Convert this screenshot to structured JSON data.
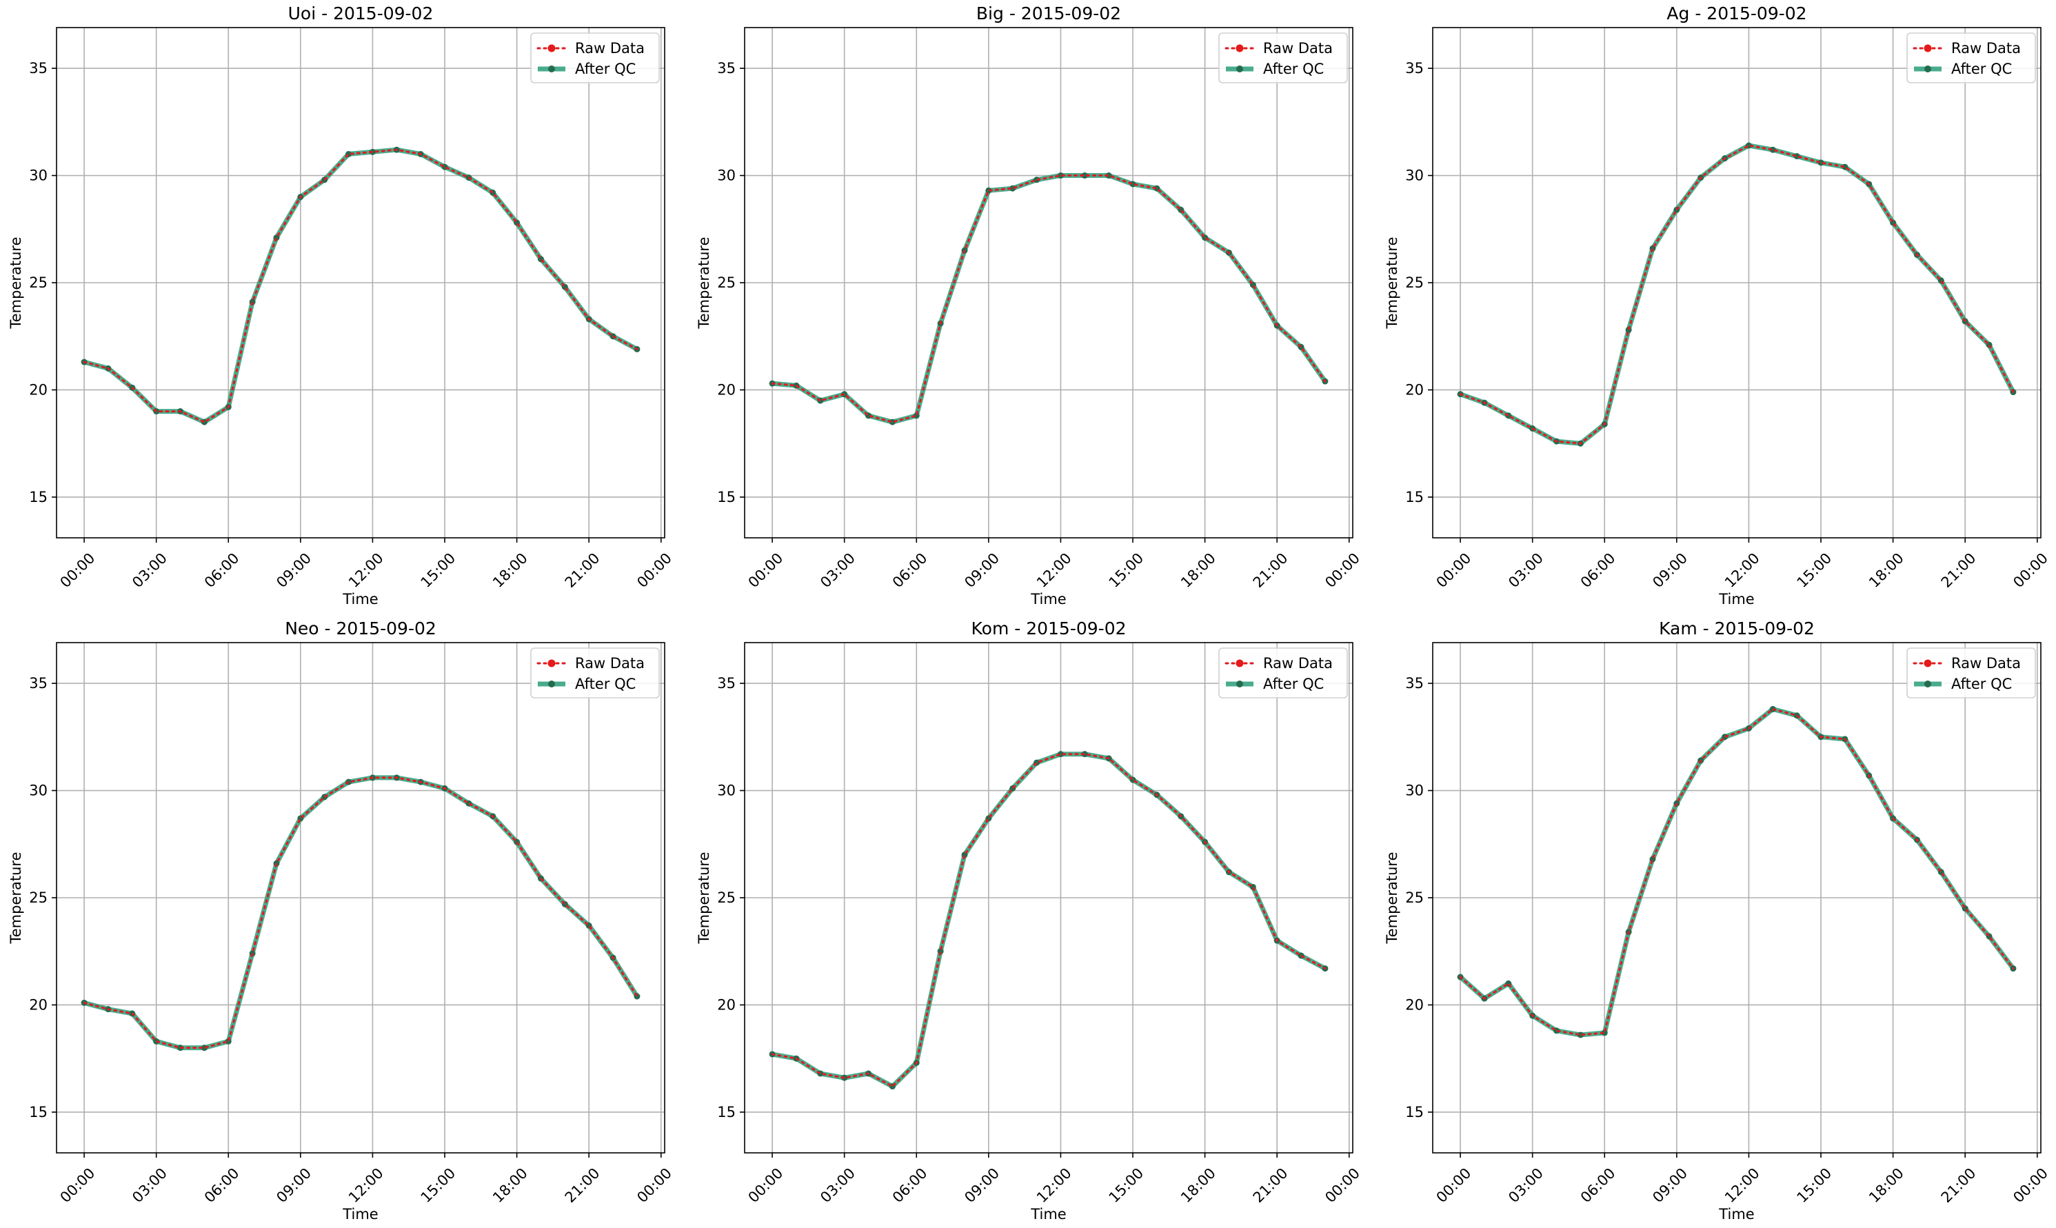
{
  "chart_data": [
    {
      "type": "line",
      "title": "Uoi - 2015-09-02",
      "xlabel": "Time",
      "ylabel": "Temperature",
      "ylim": [
        13.1,
        36.9
      ],
      "yticks": [
        15,
        20,
        25,
        30,
        35
      ],
      "xticks": [
        "00:00",
        "03:00",
        "06:00",
        "09:00",
        "12:00",
        "15:00",
        "18:00",
        "21:00",
        "00:00"
      ],
      "x_hours": [
        0,
        1,
        2,
        3,
        4,
        5,
        6,
        7,
        8,
        9,
        10,
        11,
        12,
        13,
        14,
        15,
        16,
        17,
        18,
        19,
        20,
        21,
        22,
        23
      ],
      "grid": true,
      "legend": "top-right",
      "series": [
        {
          "name": "Raw Data",
          "color": "#e41a1c",
          "values": [
            21.3,
            21.0,
            20.1,
            19.0,
            19.0,
            18.5,
            19.2,
            24.1,
            27.1,
            29.0,
            29.8,
            31.0,
            31.1,
            31.2,
            31.0,
            30.4,
            29.9,
            29.2,
            27.8,
            26.1,
            24.8,
            23.3,
            22.5,
            21.9
          ]
        },
        {
          "name": "After QC",
          "color": "#2a9d7a",
          "values": [
            21.3,
            21.0,
            20.1,
            19.0,
            19.0,
            18.5,
            19.2,
            24.1,
            27.1,
            29.0,
            29.8,
            31.0,
            31.1,
            31.2,
            31.0,
            30.4,
            29.9,
            29.2,
            27.8,
            26.1,
            24.8,
            23.3,
            22.5,
            21.9
          ]
        }
      ]
    },
    {
      "type": "line",
      "title": "Big - 2015-09-02",
      "xlabel": "Time",
      "ylabel": "Temperature",
      "ylim": [
        13.1,
        36.9
      ],
      "yticks": [
        15,
        20,
        25,
        30,
        35
      ],
      "xticks": [
        "00:00",
        "03:00",
        "06:00",
        "09:00",
        "12:00",
        "15:00",
        "18:00",
        "21:00",
        "00:00"
      ],
      "x_hours": [
        0,
        1,
        2,
        3,
        4,
        5,
        6,
        7,
        8,
        9,
        10,
        11,
        12,
        13,
        14,
        15,
        16,
        17,
        18,
        19,
        20,
        21,
        22,
        23
      ],
      "grid": true,
      "legend": "top-right",
      "series": [
        {
          "name": "Raw Data",
          "color": "#e41a1c",
          "values": [
            20.3,
            20.2,
            19.5,
            19.8,
            18.8,
            18.5,
            18.8,
            23.1,
            26.5,
            29.3,
            29.4,
            29.8,
            30.0,
            30.0,
            30.0,
            29.6,
            29.4,
            28.4,
            27.1,
            26.4,
            24.9,
            23.0,
            22.0,
            20.4
          ]
        },
        {
          "name": "After QC",
          "color": "#2a9d7a",
          "values": [
            20.3,
            20.2,
            19.5,
            19.8,
            18.8,
            18.5,
            18.8,
            23.1,
            26.5,
            29.3,
            29.4,
            29.8,
            30.0,
            30.0,
            30.0,
            29.6,
            29.4,
            28.4,
            27.1,
            26.4,
            24.9,
            23.0,
            22.0,
            20.4
          ]
        }
      ]
    },
    {
      "type": "line",
      "title": "Ag - 2015-09-02",
      "xlabel": "Time",
      "ylabel": "Temperature",
      "ylim": [
        13.1,
        36.9
      ],
      "yticks": [
        15,
        20,
        25,
        30,
        35
      ],
      "xticks": [
        "00:00",
        "03:00",
        "06:00",
        "09:00",
        "12:00",
        "15:00",
        "18:00",
        "21:00",
        "00:00"
      ],
      "x_hours": [
        0,
        1,
        2,
        3,
        4,
        5,
        6,
        7,
        8,
        9,
        10,
        11,
        12,
        13,
        14,
        15,
        16,
        17,
        18,
        19,
        20,
        21,
        22,
        23
      ],
      "grid": true,
      "legend": "top-right",
      "series": [
        {
          "name": "Raw Data",
          "color": "#e41a1c",
          "values": [
            19.8,
            19.4,
            18.8,
            18.2,
            17.6,
            17.5,
            18.4,
            22.8,
            26.6,
            28.4,
            29.9,
            30.8,
            31.4,
            31.2,
            30.9,
            30.6,
            30.4,
            29.6,
            27.8,
            26.3,
            25.1,
            23.2,
            22.1,
            19.9
          ]
        },
        {
          "name": "After QC",
          "color": "#2a9d7a",
          "values": [
            19.8,
            19.4,
            18.8,
            18.2,
            17.6,
            17.5,
            18.4,
            22.8,
            26.6,
            28.4,
            29.9,
            30.8,
            31.4,
            31.2,
            30.9,
            30.6,
            30.4,
            29.6,
            27.8,
            26.3,
            25.1,
            23.2,
            22.1,
            19.9
          ]
        }
      ]
    },
    {
      "type": "line",
      "title": "Neo - 2015-09-02",
      "xlabel": "Time",
      "ylabel": "Temperature",
      "ylim": [
        13.1,
        36.9
      ],
      "yticks": [
        15,
        20,
        25,
        30,
        35
      ],
      "xticks": [
        "00:00",
        "03:00",
        "06:00",
        "09:00",
        "12:00",
        "15:00",
        "18:00",
        "21:00",
        "00:00"
      ],
      "x_hours": [
        0,
        1,
        2,
        3,
        4,
        5,
        6,
        7,
        8,
        9,
        10,
        11,
        12,
        13,
        14,
        15,
        16,
        17,
        18,
        19,
        20,
        21,
        22,
        23
      ],
      "grid": true,
      "legend": "top-right",
      "series": [
        {
          "name": "Raw Data",
          "color": "#e41a1c",
          "values": [
            20.1,
            19.8,
            19.6,
            18.3,
            18.0,
            18.0,
            18.3,
            22.4,
            26.6,
            28.7,
            29.7,
            30.4,
            30.6,
            30.6,
            30.4,
            30.1,
            29.4,
            28.8,
            27.6,
            25.9,
            24.7,
            23.7,
            22.2,
            20.4
          ]
        },
        {
          "name": "After QC",
          "color": "#2a9d7a",
          "values": [
            20.1,
            19.8,
            19.6,
            18.3,
            18.0,
            18.0,
            18.3,
            22.4,
            26.6,
            28.7,
            29.7,
            30.4,
            30.6,
            30.6,
            30.4,
            30.1,
            29.4,
            28.8,
            27.6,
            25.9,
            24.7,
            23.7,
            22.2,
            20.4
          ]
        }
      ]
    },
    {
      "type": "line",
      "title": "Kom - 2015-09-02",
      "xlabel": "Time",
      "ylabel": "Temperature",
      "ylim": [
        13.1,
        36.9
      ],
      "yticks": [
        15,
        20,
        25,
        30,
        35
      ],
      "xticks": [
        "00:00",
        "03:00",
        "06:00",
        "09:00",
        "12:00",
        "15:00",
        "18:00",
        "21:00",
        "00:00"
      ],
      "x_hours": [
        0,
        1,
        2,
        3,
        4,
        5,
        6,
        7,
        8,
        9,
        10,
        11,
        12,
        13,
        14,
        15,
        16,
        17,
        18,
        19,
        20,
        21,
        22,
        23
      ],
      "grid": true,
      "legend": "top-right",
      "series": [
        {
          "name": "Raw Data",
          "color": "#e41a1c",
          "values": [
            17.7,
            17.5,
            16.8,
            16.6,
            16.8,
            16.2,
            17.3,
            22.5,
            27.0,
            28.7,
            30.1,
            31.3,
            31.7,
            31.7,
            31.5,
            30.5,
            29.8,
            28.8,
            27.6,
            26.2,
            25.5,
            23.0,
            22.3,
            21.7
          ]
        },
        {
          "name": "After QC",
          "color": "#2a9d7a",
          "values": [
            17.7,
            17.5,
            16.8,
            16.6,
            16.8,
            16.2,
            17.3,
            22.5,
            27.0,
            28.7,
            30.1,
            31.3,
            31.7,
            31.7,
            31.5,
            30.5,
            29.8,
            28.8,
            27.6,
            26.2,
            25.5,
            23.0,
            22.3,
            21.7
          ]
        }
      ]
    },
    {
      "type": "line",
      "title": "Kam - 2015-09-02",
      "xlabel": "Time",
      "ylabel": "Temperature",
      "ylim": [
        13.1,
        36.9
      ],
      "yticks": [
        15,
        20,
        25,
        30,
        35
      ],
      "xticks": [
        "00:00",
        "03:00",
        "06:00",
        "09:00",
        "12:00",
        "15:00",
        "18:00",
        "21:00",
        "00:00"
      ],
      "x_hours": [
        0,
        1,
        2,
        3,
        4,
        5,
        6,
        7,
        8,
        9,
        10,
        11,
        12,
        13,
        14,
        15,
        16,
        17,
        18,
        19,
        20,
        21,
        22,
        23
      ],
      "grid": true,
      "legend": "top-right",
      "series": [
        {
          "name": "Raw Data",
          "color": "#e41a1c",
          "values": [
            21.3,
            20.3,
            21.0,
            19.5,
            18.8,
            18.6,
            18.7,
            23.4,
            26.8,
            29.4,
            31.4,
            32.5,
            32.9,
            33.8,
            33.5,
            32.5,
            32.4,
            30.7,
            28.7,
            27.7,
            26.2,
            24.5,
            23.2,
            21.7
          ]
        },
        {
          "name": "After QC",
          "color": "#2a9d7a",
          "values": [
            21.3,
            20.3,
            21.0,
            19.5,
            18.8,
            18.6,
            18.7,
            23.4,
            26.8,
            29.4,
            31.4,
            32.5,
            32.9,
            33.8,
            33.5,
            32.5,
            32.4,
            30.7,
            28.7,
            27.7,
            26.2,
            24.5,
            23.2,
            21.7
          ]
        }
      ]
    }
  ]
}
